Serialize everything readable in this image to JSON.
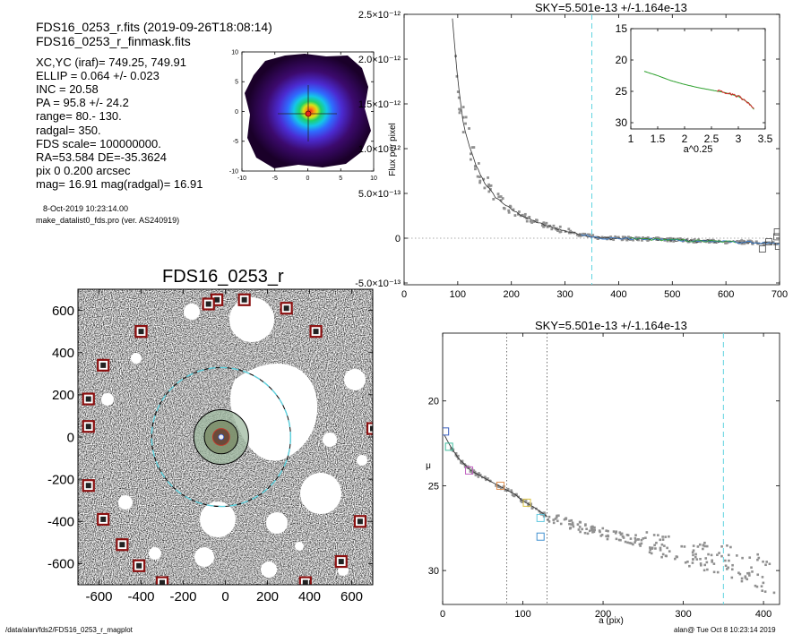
{
  "header": {
    "fits_line": "FDS16_0253_r.fits  (2019-09-26T18:08:14)",
    "mask_line": "FDS16_0253_r_finmask.fits",
    "info_lines": [
      "XC,YC (iraf)=   749.25, 749.91",
      "ELLIP = 0.064 +/- 0.023",
      "INC   = 20.58",
      "PA    =  95.8 +/-  24.2",
      "range=   80.-  130.",
      "radgal=  350.",
      "FDS scale=  100000000.",
      "RA=53.584  DE=-35.3624",
      "pix 0 0.200 arcsec",
      "mag=  16.91  mag(radgal)=  16.91"
    ],
    "date_line": "8-Oct-2019 10:23:14.00",
    "program_line": "make_datalist0_fds.pro (ver. AS240919)"
  },
  "footer": {
    "path": "/data/alan/fds2/FDS16_0253_r_magplot",
    "user": "alan@  Tue Oct  8 10:23:14 2019"
  },
  "colors": {
    "dashed_cyan": "#5fd3e0",
    "mask_squares": "#8b1010",
    "fit_green": "#2ca02c",
    "fit_red": "#d62728",
    "points": "#909090"
  },
  "chart_data": [
    {
      "type": "heatmap",
      "id": "thumbnail",
      "title": "",
      "xlim": [
        -10,
        10
      ],
      "ylim": [
        -10,
        10
      ],
      "xticks": [
        -10,
        -5,
        0,
        5,
        10
      ],
      "yticks": [
        -10,
        -5,
        0,
        5,
        10
      ],
      "colormap": [
        "#1a0029",
        "#3c0a6e",
        "#4b2bd1",
        "#2f6bff",
        "#14c7e8",
        "#1fd16a",
        "#d7e31a",
        "#ff9a10",
        "#e8281c"
      ]
    },
    {
      "type": "scatter",
      "id": "image",
      "title": "FDS16_0253_r",
      "xlim": [
        -700,
        700
      ],
      "ylim": [
        -700,
        700
      ],
      "xticks": [
        -600,
        -400,
        -200,
        0,
        200,
        400,
        600
      ],
      "yticks": [
        -600,
        -400,
        -200,
        0,
        200,
        400,
        600
      ],
      "big_circle_radius": 330,
      "inner_circle_radii": [
        40,
        80,
        130
      ],
      "mask_squares": [
        [
          -40,
          650
        ],
        [
          -80,
          630
        ],
        [
          -400,
          500
        ],
        [
          -580,
          340
        ],
        [
          -650,
          180
        ],
        [
          -650,
          50
        ],
        [
          -650,
          -230
        ],
        [
          -580,
          -390
        ],
        [
          -490,
          -510
        ],
        [
          -410,
          -610
        ],
        [
          -300,
          -690
        ],
        [
          90,
          650
        ],
        [
          290,
          610
        ],
        [
          430,
          500
        ],
        [
          700,
          40
        ],
        [
          640,
          -400
        ],
        [
          550,
          -590
        ],
        [
          380,
          -690
        ],
        [
          -400,
          500
        ]
      ]
    },
    {
      "type": "line",
      "id": "sky",
      "title": "SKY=5.501e-13 +/-1.164e-13",
      "xlabel": "",
      "ylabel": "Flux per pixel",
      "xlim": [
        0,
        700
      ],
      "ylim": [
        -5.2e-13,
        2.5e-12
      ],
      "xticks": [
        0,
        100,
        200,
        300,
        400,
        500,
        600,
        700
      ],
      "yticks": [
        -5e-13,
        0,
        5e-13,
        1e-12,
        1.5e-12,
        2e-12,
        2.5e-12
      ],
      "ytick_labels": [
        "-5.0×10⁻¹³",
        "0",
        "5.0×10⁻¹³",
        "1.0×10⁻¹²",
        "1.5×10⁻¹²",
        "2.0×10⁻¹²",
        "2.5×10⁻¹²"
      ],
      "radgal": 350,
      "series": [
        {
          "values": [
            [
              90,
              2.45e-12
            ],
            [
              95,
              2.1e-12
            ],
            [
              100,
              1.75e-12
            ],
            [
              110,
              1.3e-12
            ],
            [
              120,
              1.05e-12
            ],
            [
              135,
              8e-13
            ],
            [
              150,
              6.2e-13
            ],
            [
              170,
              4.6e-13
            ],
            [
              200,
              3.2e-13
            ],
            [
              230,
              2.2e-13
            ],
            [
              260,
              1.5e-13
            ],
            [
              300,
              8e-14
            ],
            [
              340,
              3e-14
            ],
            [
              370,
              0
            ],
            [
              420,
              -5e-15
            ],
            [
              480,
              -1.5e-14
            ],
            [
              540,
              -3e-14
            ],
            [
              600,
              -4e-14
            ],
            [
              660,
              -5e-14
            ],
            [
              700,
              -7e-14
            ]
          ]
        }
      ],
      "inset": {
        "xlabel": "a^0.25",
        "xlim": [
          1.0,
          3.5
        ],
        "ylim": [
          31,
          15
        ],
        "xticks": [
          1.0,
          1.5,
          2.0,
          2.5,
          3.0,
          3.5
        ],
        "yticks": [
          15,
          20,
          25,
          30
        ],
        "series": [
          {
            "values": [
              [
                1.25,
                21.8
              ],
              [
                1.5,
                22.5
              ],
              [
                1.75,
                23.3
              ],
              [
                2.0,
                23.9
              ],
              [
                2.25,
                24.4
              ],
              [
                2.5,
                24.8
              ],
              [
                2.75,
                25.2
              ],
              [
                3.0,
                25.8
              ],
              [
                3.2,
                26.9
              ],
              [
                3.3,
                28.0
              ]
            ]
          }
        ]
      }
    },
    {
      "type": "line",
      "id": "profile",
      "title": "SKY=5.501e-13 +/-1.164e-13",
      "xlabel": "a (pix)",
      "ylabel": "μ",
      "xlim": [
        0,
        420
      ],
      "ylim": [
        32,
        16
      ],
      "xticks": [
        0,
        100,
        200,
        300,
        400
      ],
      "yticks": [
        20,
        25,
        30
      ],
      "range_lines": [
        80,
        130
      ],
      "radgal": 350,
      "series": [
        {
          "values": [
            [
              2,
              22.0
            ],
            [
              10,
              22.7
            ],
            [
              20,
              23.4
            ],
            [
              35,
              24.1
            ],
            [
              50,
              24.5
            ],
            [
              70,
              25.0
            ],
            [
              90,
              25.5
            ],
            [
              100,
              25.9
            ],
            [
              115,
              26.3
            ],
            [
              130,
              26.8
            ],
            [
              160,
              27.3
            ],
            [
              200,
              27.8
            ],
            [
              250,
              28.3
            ],
            [
              300,
              28.9
            ],
            [
              350,
              29.4
            ],
            [
              400,
              30.2
            ]
          ]
        }
      ],
      "markers": [
        {
          "a": 3,
          "mu": 21.8,
          "color": "#3a5fbf"
        },
        {
          "a": 8,
          "mu": 22.7,
          "color": "#3fbf9f"
        },
        {
          "a": 33,
          "mu": 24.1,
          "color": "#c060c0"
        },
        {
          "a": 72,
          "mu": 25.0,
          "color": "#e09050"
        },
        {
          "a": 105,
          "mu": 26.0,
          "color": "#d8c040"
        },
        {
          "a": 122,
          "mu": 26.9,
          "color": "#60c8e0"
        },
        {
          "a": 122,
          "mu": 28.0,
          "color": "#4090d0"
        }
      ]
    }
  ]
}
